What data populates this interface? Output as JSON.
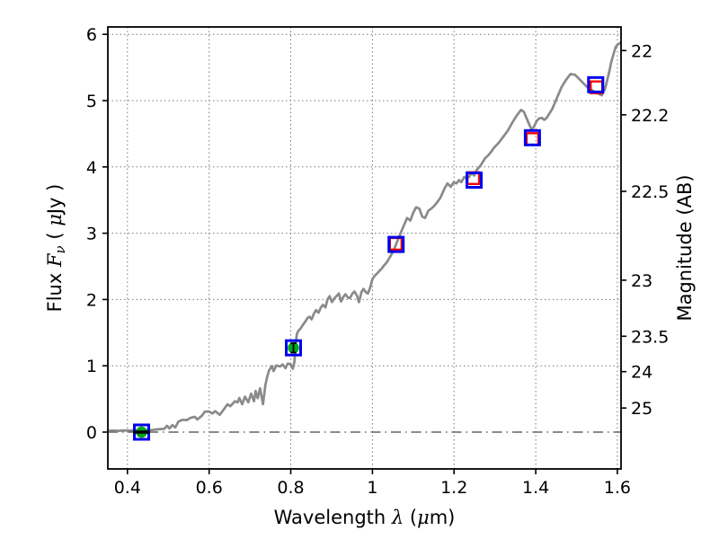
{
  "figure": {
    "background": "#ffffff",
    "xlabel_parts": [
      {
        "t": "Wavelength  ",
        "it": false
      },
      {
        "t": "λ",
        "it": true
      },
      {
        "t": " (",
        "it": false
      },
      {
        "t": "μ",
        "it": true
      },
      {
        "t": "m)",
        "it": false
      }
    ],
    "ylabel_left_parts": [
      {
        "t": "Flux  ",
        "it": false
      },
      {
        "t": "F",
        "it": true
      },
      {
        "t": "ν",
        "it": true,
        "sub": true
      },
      {
        "t": "  ( ",
        "it": false
      },
      {
        "t": "μ",
        "it": true
      },
      {
        "t": "Jy )",
        "it": false
      }
    ],
    "ylabel_right": "Magnitude (AB)"
  },
  "chart_data": {
    "type": "line+scatter",
    "title": "",
    "xlabel": "Wavelength λ (μm)",
    "ylabel_left": "Flux Fν ( μJy )",
    "ylabel_right": "Magnitude (AB)",
    "xlim": [
      0.352,
      1.609
    ],
    "ylim": [
      -0.556,
      6.111
    ],
    "grid": true,
    "grid_style": "dotted",
    "zero_line_flux": 0,
    "legend": null,
    "x_ticks": [
      {
        "v": 0.4,
        "label": "0.4"
      },
      {
        "v": 0.6,
        "label": "0.6"
      },
      {
        "v": 0.8,
        "label": "0.8"
      },
      {
        "v": 1.0,
        "label": "1"
      },
      {
        "v": 1.2,
        "label": "1.2"
      },
      {
        "v": 1.4,
        "label": "1.4"
      },
      {
        "v": 1.6,
        "label": "1.6"
      }
    ],
    "y_ticks_left": [
      {
        "v": 0,
        "label": "0"
      },
      {
        "v": 1,
        "label": "1"
      },
      {
        "v": 2,
        "label": "2"
      },
      {
        "v": 3,
        "label": "3"
      },
      {
        "v": 4,
        "label": "4"
      },
      {
        "v": 5,
        "label": "5"
      },
      {
        "v": 6,
        "label": "6"
      }
    ],
    "y_ticks_right": [
      {
        "label": "22",
        "flux": 5.754
      },
      {
        "label": "22.2",
        "flux": 4.786
      },
      {
        "label": "22.5",
        "flux": 3.631
      },
      {
        "label": "23",
        "flux": 2.291
      },
      {
        "label": "23.5",
        "flux": 1.445
      },
      {
        "label": "24",
        "flux": 0.912
      },
      {
        "label": "25",
        "flux": 0.363
      }
    ],
    "colors": {
      "spectrum": "#8a8a8a",
      "observed_square": "#0000ee",
      "model_square": "#f40000",
      "measured_circle": "#00a51c",
      "error_bar": "#000000",
      "grid": "#777777",
      "zero_line": "#444444",
      "frame": "#000000"
    },
    "series": {
      "spectrum": {
        "name": "model-spectrum",
        "points": [
          [
            0.352,
            0.02
          ],
          [
            0.365,
            0.022
          ],
          [
            0.378,
            0.018
          ],
          [
            0.392,
            0.025
          ],
          [
            0.405,
            0.022
          ],
          [
            0.418,
            0.028
          ],
          [
            0.432,
            0.03
          ],
          [
            0.445,
            0.032
          ],
          [
            0.458,
            0.03
          ],
          [
            0.472,
            0.04
          ],
          [
            0.483,
            0.045
          ],
          [
            0.49,
            0.05
          ],
          [
            0.497,
            0.095
          ],
          [
            0.503,
            0.055
          ],
          [
            0.51,
            0.105
          ],
          [
            0.517,
            0.07
          ],
          [
            0.525,
            0.16
          ],
          [
            0.535,
            0.185
          ],
          [
            0.545,
            0.18
          ],
          [
            0.555,
            0.215
          ],
          [
            0.565,
            0.23
          ],
          [
            0.571,
            0.19
          ],
          [
            0.582,
            0.245
          ],
          [
            0.59,
            0.31
          ],
          [
            0.6,
            0.31
          ],
          [
            0.608,
            0.28
          ],
          [
            0.615,
            0.315
          ],
          [
            0.626,
            0.26
          ],
          [
            0.637,
            0.35
          ],
          [
            0.645,
            0.42
          ],
          [
            0.652,
            0.39
          ],
          [
            0.663,
            0.465
          ],
          [
            0.67,
            0.45
          ],
          [
            0.674,
            0.515
          ],
          [
            0.681,
            0.42
          ],
          [
            0.688,
            0.535
          ],
          [
            0.696,
            0.45
          ],
          [
            0.703,
            0.58
          ],
          [
            0.71,
            0.465
          ],
          [
            0.714,
            0.62
          ],
          [
            0.719,
            0.51
          ],
          [
            0.725,
            0.66
          ],
          [
            0.732,
            0.42
          ],
          [
            0.738,
            0.71
          ],
          [
            0.742,
            0.83
          ],
          [
            0.747,
            0.93
          ],
          [
            0.754,
            0.995
          ],
          [
            0.758,
            0.92
          ],
          [
            0.765,
            1.005
          ],
          [
            0.774,
            0.99
          ],
          [
            0.78,
            1.02
          ],
          [
            0.787,
            0.965
          ],
          [
            0.793,
            1.035
          ],
          [
            0.8,
            1.02
          ],
          [
            0.805,
            0.955
          ],
          [
            0.809,
            1.06
          ],
          [
            0.812,
            1.32
          ],
          [
            0.815,
            1.48
          ],
          [
            0.819,
            1.53
          ],
          [
            0.824,
            1.56
          ],
          [
            0.83,
            1.62
          ],
          [
            0.836,
            1.67
          ],
          [
            0.841,
            1.72
          ],
          [
            0.846,
            1.74
          ],
          [
            0.851,
            1.7
          ],
          [
            0.857,
            1.79
          ],
          [
            0.862,
            1.84
          ],
          [
            0.868,
            1.8
          ],
          [
            0.874,
            1.88
          ],
          [
            0.879,
            1.92
          ],
          [
            0.885,
            1.88
          ],
          [
            0.89,
            2.0
          ],
          [
            0.895,
            2.05
          ],
          [
            0.901,
            1.96
          ],
          [
            0.907,
            2.02
          ],
          [
            0.912,
            2.05
          ],
          [
            0.918,
            2.09
          ],
          [
            0.923,
            1.97
          ],
          [
            0.929,
            2.04
          ],
          [
            0.934,
            2.08
          ],
          [
            0.94,
            2.03
          ],
          [
            0.945,
            2.02
          ],
          [
            0.951,
            2.09
          ],
          [
            0.956,
            2.12
          ],
          [
            0.962,
            2.06
          ],
          [
            0.967,
            1.96
          ],
          [
            0.973,
            2.11
          ],
          [
            0.978,
            2.16
          ],
          [
            0.984,
            2.11
          ],
          [
            0.989,
            2.09
          ],
          [
            0.995,
            2.19
          ],
          [
            1.0,
            2.31
          ],
          [
            1.006,
            2.36
          ],
          [
            1.011,
            2.39
          ],
          [
            1.017,
            2.43
          ],
          [
            1.022,
            2.46
          ],
          [
            1.028,
            2.51
          ],
          [
            1.034,
            2.55
          ],
          [
            1.04,
            2.61
          ],
          [
            1.045,
            2.66
          ],
          [
            1.051,
            2.73
          ],
          [
            1.056,
            2.8
          ],
          [
            1.061,
            2.88
          ],
          [
            1.066,
            2.95
          ],
          [
            1.071,
            3.03
          ],
          [
            1.078,
            3.13
          ],
          [
            1.085,
            3.23
          ],
          [
            1.093,
            3.19
          ],
          [
            1.1,
            3.31
          ],
          [
            1.107,
            3.39
          ],
          [
            1.115,
            3.37
          ],
          [
            1.122,
            3.25
          ],
          [
            1.129,
            3.23
          ],
          [
            1.137,
            3.34
          ],
          [
            1.144,
            3.37
          ],
          [
            1.151,
            3.41
          ],
          [
            1.158,
            3.46
          ],
          [
            1.166,
            3.53
          ],
          [
            1.172,
            3.61
          ],
          [
            1.177,
            3.68
          ],
          [
            1.184,
            3.75
          ],
          [
            1.192,
            3.7
          ],
          [
            1.199,
            3.77
          ],
          [
            1.206,
            3.75
          ],
          [
            1.212,
            3.8
          ],
          [
            1.218,
            3.77
          ],
          [
            1.225,
            3.85
          ],
          [
            1.231,
            3.82
          ],
          [
            1.238,
            3.86
          ],
          [
            1.243,
            3.91
          ],
          [
            1.249,
            3.87
          ],
          [
            1.255,
            3.95
          ],
          [
            1.265,
            4.02
          ],
          [
            1.276,
            4.13
          ],
          [
            1.283,
            4.17
          ],
          [
            1.29,
            4.22
          ],
          [
            1.298,
            4.29
          ],
          [
            1.309,
            4.36
          ],
          [
            1.32,
            4.45
          ],
          [
            1.331,
            4.54
          ],
          [
            1.342,
            4.66
          ],
          [
            1.353,
            4.77
          ],
          [
            1.364,
            4.86
          ],
          [
            1.371,
            4.83
          ],
          [
            1.382,
            4.67
          ],
          [
            1.39,
            4.56
          ],
          [
            1.396,
            4.61
          ],
          [
            1.402,
            4.69
          ],
          [
            1.408,
            4.73
          ],
          [
            1.415,
            4.74
          ],
          [
            1.421,
            4.71
          ],
          [
            1.427,
            4.74
          ],
          [
            1.434,
            4.81
          ],
          [
            1.441,
            4.88
          ],
          [
            1.452,
            5.04
          ],
          [
            1.463,
            5.2
          ],
          [
            1.474,
            5.31
          ],
          [
            1.485,
            5.4
          ],
          [
            1.496,
            5.39
          ],
          [
            1.503,
            5.35
          ],
          [
            1.514,
            5.28
          ],
          [
            1.525,
            5.21
          ],
          [
            1.535,
            5.17
          ],
          [
            1.544,
            5.13
          ],
          [
            1.555,
            5.1
          ],
          [
            1.562,
            5.08
          ],
          [
            1.57,
            5.18
          ],
          [
            1.576,
            5.33
          ],
          [
            1.581,
            5.46
          ],
          [
            1.585,
            5.58
          ],
          [
            1.591,
            5.71
          ],
          [
            1.596,
            5.81
          ],
          [
            1.601,
            5.85
          ],
          [
            1.605,
            5.86
          ],
          [
            1.609,
            5.88
          ]
        ]
      },
      "observed_squares": {
        "name": "observed-photometry",
        "points": [
          [
            0.4345,
            0.0
          ],
          [
            0.8065,
            1.27
          ],
          [
            1.058,
            2.83
          ],
          [
            1.249,
            3.8
          ],
          [
            1.392,
            4.44
          ],
          [
            1.547,
            5.24
          ]
        ]
      },
      "model_squares": {
        "name": "model-photometry",
        "points": [
          [
            1.057,
            2.84
          ],
          [
            1.247,
            3.83
          ],
          [
            1.392,
            4.42
          ],
          [
            1.549,
            5.2
          ]
        ]
      },
      "measured_points": {
        "name": "measured-flux",
        "points": [
          {
            "x": 0.4345,
            "y": 0.0,
            "err": 0.02,
            "err_dir": "h"
          },
          {
            "x": 0.8065,
            "y": 1.27,
            "err": 0.07,
            "err_dir": "v"
          }
        ]
      }
    }
  }
}
